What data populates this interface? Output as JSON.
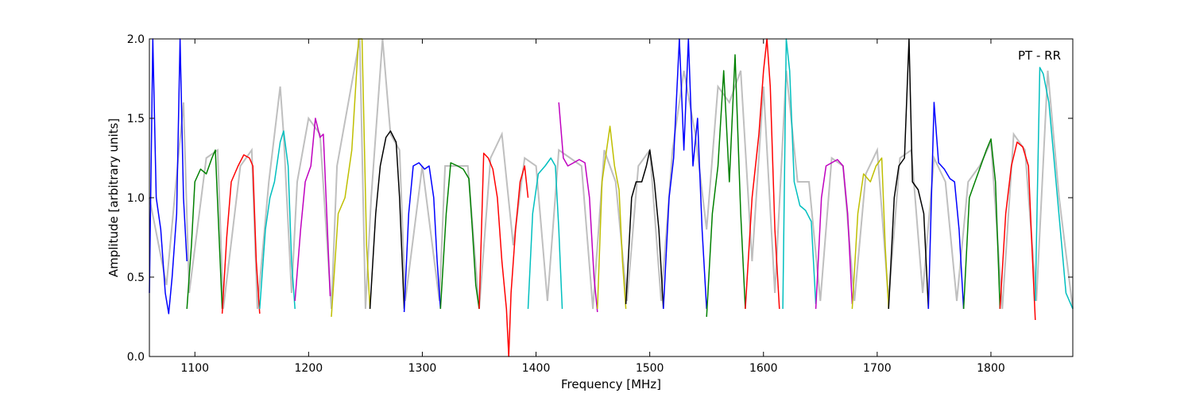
{
  "chart_data": {
    "type": "line",
    "xlabel": "Frequency [MHz]",
    "ylabel": "Amplitude [arbitrary units]",
    "annotation": "PT - RR",
    "annotation_position": "top-right",
    "xlim": [
      1060,
      1872
    ],
    "ylim": [
      0,
      2.0
    ],
    "x_ticks": [
      1100,
      1200,
      1300,
      1400,
      1500,
      1600,
      1700,
      1800
    ],
    "x_tick_labels": [
      "1100",
      "1200",
      "1300",
      "1400",
      "1500",
      "1600",
      "1700",
      "1800"
    ],
    "y_ticks": [
      0.0,
      0.5,
      1.0,
      1.5,
      2.0
    ],
    "y_tick_labels": [
      "0.0",
      "0.5",
      "1.0",
      "1.5",
      "2.0"
    ],
    "grid": false,
    "background_series": {
      "color": "#bfbfbf",
      "x": [
        1060,
        1075,
        1090,
        1095,
        1110,
        1120,
        1125,
        1140,
        1150,
        1155,
        1165,
        1175,
        1178,
        1185,
        1190,
        1200,
        1210,
        1220,
        1225,
        1235,
        1245,
        1250,
        1255,
        1265,
        1272,
        1280,
        1285,
        1300,
        1315,
        1320,
        1340,
        1350,
        1360,
        1370,
        1380,
        1390,
        1400,
        1410,
        1420,
        1430,
        1440,
        1450,
        1460,
        1470,
        1480,
        1490,
        1500,
        1510,
        1520,
        1530,
        1540,
        1550,
        1560,
        1570,
        1580,
        1590,
        1600,
        1610,
        1620,
        1630,
        1640,
        1650,
        1660,
        1670,
        1680,
        1690,
        1700,
        1710,
        1720,
        1730,
        1740,
        1750,
        1760,
        1770,
        1780,
        1790,
        1800,
        1810,
        1820,
        1830,
        1840,
        1850,
        1860,
        1872
      ],
      "y": [
        1.0,
        0.45,
        1.6,
        0.4,
        1.25,
        1.3,
        0.3,
        1.2,
        1.3,
        0.3,
        1.1,
        1.7,
        1.4,
        0.4,
        1.1,
        1.5,
        1.4,
        0.3,
        1.2,
        1.6,
        2.0,
        0.3,
        1.0,
        2.0,
        1.4,
        1.3,
        0.35,
        1.2,
        0.35,
        1.2,
        1.2,
        0.3,
        1.25,
        1.4,
        0.7,
        1.25,
        1.2,
        0.35,
        1.3,
        1.25,
        1.2,
        0.3,
        1.3,
        1.1,
        0.35,
        1.2,
        1.3,
        0.35,
        1.3,
        1.8,
        1.4,
        0.8,
        1.7,
        1.6,
        1.8,
        0.6,
        1.7,
        0.4,
        1.8,
        1.1,
        1.1,
        0.35,
        1.25,
        1.2,
        0.35,
        1.15,
        1.3,
        0.35,
        1.25,
        1.3,
        0.4,
        1.25,
        1.1,
        0.35,
        1.1,
        1.2,
        1.35,
        0.3,
        1.4,
        1.3,
        0.35,
        1.8,
        1.0,
        0.3
      ]
    },
    "series": [
      {
        "color": "#0000ff",
        "x": [
          1060,
          1063,
          1066,
          1070,
          1074,
          1077,
          1080,
          1084,
          1087,
          1090,
          1093
        ],
        "y": [
          0.4,
          2.0,
          1.0,
          0.8,
          0.4,
          0.27,
          0.5,
          0.9,
          2.0,
          1.0,
          0.6
        ]
      },
      {
        "color": "#008000",
        "x": [
          1093,
          1097,
          1100,
          1105,
          1110,
          1115,
          1118,
          1121,
          1124
        ],
        "y": [
          0.3,
          0.7,
          1.1,
          1.18,
          1.15,
          1.25,
          1.3,
          0.8,
          0.3
        ]
      },
      {
        "color": "#ff0000",
        "x": [
          1124,
          1128,
          1132,
          1138,
          1143,
          1148,
          1151,
          1154,
          1157
        ],
        "y": [
          0.27,
          0.75,
          1.1,
          1.2,
          1.27,
          1.25,
          1.2,
          0.6,
          0.27
        ]
      },
      {
        "color": "#00bfbf",
        "x": [
          1157,
          1162,
          1166,
          1170,
          1175,
          1178,
          1182,
          1185,
          1188
        ],
        "y": [
          0.3,
          0.8,
          1.0,
          1.1,
          1.35,
          1.42,
          1.2,
          0.6,
          0.3
        ]
      },
      {
        "color": "#bf00bf",
        "x": [
          1188,
          1193,
          1197,
          1202,
          1206,
          1210,
          1213,
          1216,
          1219
        ],
        "y": [
          0.35,
          0.8,
          1.1,
          1.2,
          1.5,
          1.38,
          1.4,
          0.9,
          0.38
        ]
      },
      {
        "color": "#bfbf00",
        "x": [
          1220,
          1226,
          1232,
          1238,
          1244,
          1247,
          1251,
          1254
        ],
        "y": [
          0.25,
          0.9,
          1.0,
          1.3,
          2.0,
          2.0,
          0.7,
          0.3
        ]
      },
      {
        "color": "#000000",
        "x": [
          1254,
          1259,
          1263,
          1268,
          1272,
          1277,
          1280,
          1284
        ],
        "y": [
          0.3,
          0.9,
          1.2,
          1.38,
          1.42,
          1.35,
          1.0,
          0.3
        ]
      },
      {
        "color": "#0000ff",
        "x": [
          1284,
          1288,
          1292,
          1297,
          1302,
          1306,
          1310,
          1313,
          1316
        ],
        "y": [
          0.28,
          0.9,
          1.2,
          1.22,
          1.18,
          1.2,
          1.0,
          0.6,
          0.3
        ]
      },
      {
        "color": "#008000",
        "x": [
          1316,
          1321,
          1325,
          1331,
          1336,
          1341,
          1344,
          1347,
          1350
        ],
        "y": [
          0.3,
          0.9,
          1.22,
          1.2,
          1.18,
          1.12,
          0.8,
          0.45,
          0.3
        ]
      },
      {
        "color": "#ff0000",
        "x": [
          1350,
          1354,
          1358,
          1362,
          1366,
          1370,
          1374,
          1376,
          1378,
          1382,
          1386,
          1390,
          1393
        ],
        "y": [
          0.3,
          1.28,
          1.25,
          1.18,
          1.0,
          0.6,
          0.3,
          0.0,
          0.4,
          0.8,
          1.1,
          1.2,
          1.0
        ]
      },
      {
        "color": "#00bfbf",
        "x": [
          1393,
          1397,
          1402,
          1408,
          1413,
          1417,
          1420,
          1423
        ],
        "y": [
          0.3,
          0.9,
          1.15,
          1.2,
          1.25,
          1.2,
          0.8,
          0.3
        ]
      },
      {
        "color": "#bf00bf",
        "x": [
          1420,
          1424,
          1428,
          1433,
          1438,
          1443,
          1447,
          1451,
          1454
        ],
        "y": [
          1.6,
          1.25,
          1.2,
          1.22,
          1.24,
          1.22,
          1.0,
          0.5,
          0.28
        ]
      },
      {
        "color": "#bfbf00",
        "x": [
          1454,
          1458,
          1462,
          1465,
          1469,
          1473,
          1476,
          1479
        ],
        "y": [
          0.3,
          1.1,
          1.3,
          1.45,
          1.2,
          1.05,
          0.6,
          0.3
        ]
      },
      {
        "color": "#000000",
        "x": [
          1479,
          1484,
          1488,
          1493,
          1497,
          1500,
          1504,
          1508,
          1512
        ],
        "y": [
          0.33,
          1.0,
          1.1,
          1.1,
          1.2,
          1.3,
          1.1,
          0.8,
          0.3
        ]
      },
      {
        "color": "#0000ff",
        "x": [
          1512,
          1517,
          1521,
          1526,
          1530,
          1534,
          1538,
          1542,
          1546,
          1550
        ],
        "y": [
          0.3,
          1.0,
          1.25,
          2.0,
          1.3,
          2.0,
          1.2,
          1.5,
          0.8,
          0.3
        ]
      },
      {
        "color": "#008000",
        "x": [
          1550,
          1555,
          1560,
          1565,
          1570,
          1575,
          1580,
          1584
        ],
        "y": [
          0.25,
          0.9,
          1.2,
          1.8,
          1.1,
          1.9,
          0.9,
          0.3
        ]
      },
      {
        "color": "#ff0000",
        "x": [
          1584,
          1590,
          1596,
          1600,
          1603,
          1606,
          1610,
          1614
        ],
        "y": [
          0.3,
          1.0,
          1.4,
          1.8,
          2.0,
          1.7,
          0.8,
          0.3
        ]
      },
      {
        "color": "#00bfbf",
        "x": [
          1617,
          1620,
          1623,
          1627,
          1632,
          1637,
          1642,
          1646
        ],
        "y": [
          0.3,
          2.0,
          1.8,
          1.1,
          0.95,
          0.92,
          0.85,
          0.33
        ]
      },
      {
        "color": "#bf00bf",
        "x": [
          1646,
          1651,
          1655,
          1660,
          1665,
          1670,
          1674,
          1678
        ],
        "y": [
          0.3,
          1.0,
          1.2,
          1.22,
          1.24,
          1.2,
          0.9,
          0.33
        ]
      },
      {
        "color": "#bfbf00",
        "x": [
          1678,
          1683,
          1688,
          1694,
          1699,
          1704,
          1707,
          1710
        ],
        "y": [
          0.3,
          0.9,
          1.15,
          1.1,
          1.2,
          1.25,
          0.7,
          0.3
        ]
      },
      {
        "color": "#000000",
        "x": [
          1710,
          1715,
          1719,
          1724,
          1728,
          1731,
          1736,
          1741,
          1745
        ],
        "y": [
          0.3,
          1.0,
          1.2,
          1.25,
          2.0,
          1.1,
          1.05,
          0.9,
          0.3
        ]
      },
      {
        "color": "#0000ff",
        "x": [
          1745,
          1750,
          1754,
          1759,
          1764,
          1768,
          1772,
          1776
        ],
        "y": [
          0.3,
          1.6,
          1.22,
          1.18,
          1.12,
          1.1,
          0.8,
          0.3
        ]
      },
      {
        "color": "#008000",
        "x": [
          1776,
          1781,
          1786,
          1791,
          1796,
          1800,
          1804,
          1808
        ],
        "y": [
          0.3,
          1.0,
          1.1,
          1.2,
          1.3,
          1.37,
          1.1,
          0.3
        ]
      },
      {
        "color": "#ff0000",
        "x": [
          1808,
          1813,
          1818,
          1823,
          1828,
          1833,
          1836,
          1839
        ],
        "y": [
          0.3,
          0.9,
          1.2,
          1.35,
          1.32,
          1.2,
          0.7,
          0.23
        ]
      },
      {
        "color": "#00bfbf",
        "x": [
          1839,
          1843,
          1846,
          1851,
          1856,
          1861,
          1866,
          1872
        ],
        "y": [
          0.35,
          1.82,
          1.78,
          1.6,
          1.2,
          0.8,
          0.4,
          0.3
        ]
      }
    ]
  }
}
